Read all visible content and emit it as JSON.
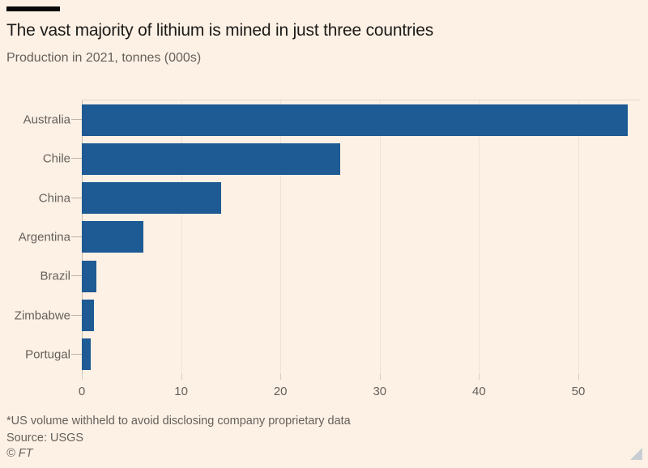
{
  "header": {
    "title": "The vast majority of lithium is mined in just three countries",
    "subtitle": "Production in 2021, tonnes (000s)"
  },
  "chart_data": {
    "type": "bar",
    "orientation": "horizontal",
    "title": "The vast majority of lithium is mined in just three countries",
    "subtitle": "Production in 2021, tonnes (000s)",
    "categories": [
      "Australia",
      "Chile",
      "China",
      "Argentina",
      "Brazil",
      "Zimbabwe",
      "Portugal"
    ],
    "values": [
      55,
      26,
      14,
      6.2,
      1.5,
      1.2,
      0.9
    ],
    "xlabel": "",
    "ylabel": "",
    "xlim": [
      0,
      56.2
    ],
    "xticks": [
      0,
      10,
      20,
      30,
      40,
      50
    ],
    "grid": true,
    "legend": false,
    "bar_color": "#1e5a94"
  },
  "footer": {
    "note": "*US volume withheld to avoid disclosing company proprietary data",
    "source": "Source: USGS",
    "copyright": "© FT"
  },
  "colors": {
    "background": "#FDF1E5",
    "bar": "#1e5a94",
    "title_text": "#1d1c1a",
    "secondary_text": "#66605b",
    "gridline": "#f0e2d3",
    "axis": "#c6bdb2"
  }
}
